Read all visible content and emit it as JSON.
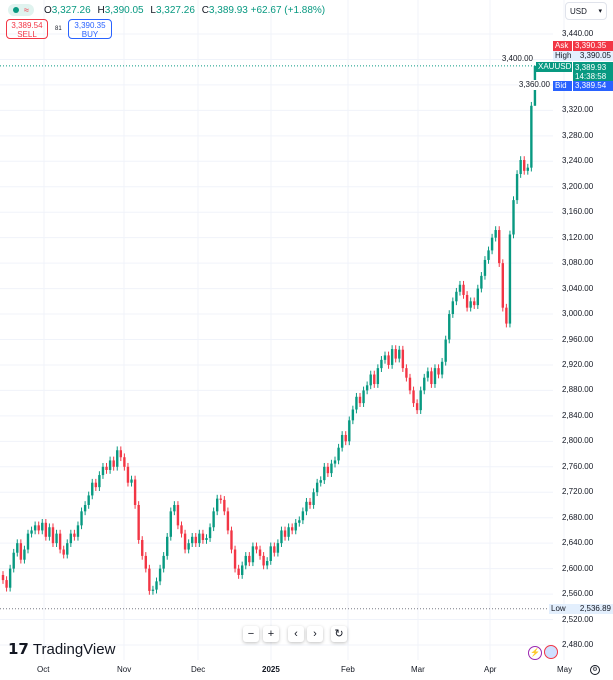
{
  "header": {
    "open_label": "O",
    "open": "3,327.26",
    "high_label": "H",
    "high": "3,390.05",
    "low_label": "L",
    "low": "3,327.26",
    "close_label": "C",
    "close": "3,389.93",
    "change": "+62.67 (+1.88%)"
  },
  "trade": {
    "sell_price": "3,389.54",
    "sell_label": "SELL",
    "spread": "81",
    "buy_price": "3,390.35",
    "buy_label": "BUY"
  },
  "currency": "USD",
  "price_tags": {
    "ask_label": "Ask",
    "ask": "3,390.35",
    "high_label": "High",
    "high": "3,390.05",
    "symbol": "XAUUSD",
    "last": "3,389.93",
    "countdown": "14:38:58",
    "bid_label": "Bid",
    "bid": "3,389.54",
    "low_label": "Low",
    "low": "2,536.89"
  },
  "x_labels": [
    "Oct",
    "Nov",
    "Dec",
    "2025",
    "Feb",
    "Mar",
    "Apr",
    "May"
  ],
  "toolbar": {
    "zoom_out": "−",
    "zoom_in": "+",
    "scroll_left": "‹",
    "scroll_right": "›",
    "reset": "↻"
  },
  "brand": "TradingView",
  "colors": {
    "up": "#089981",
    "down": "#f23645",
    "bid": "#2962ff",
    "grid": "#f0f3fa"
  },
  "chart_data": {
    "type": "candlestick",
    "symbol": "XAUUSD",
    "ylim": [
      2480,
      3440
    ],
    "y_ticks": [
      3440,
      3400,
      3360,
      3320,
      3280,
      3240,
      3200,
      3160,
      3120,
      3080,
      3040,
      3000,
      2960,
      2920,
      2880,
      2840,
      2800,
      2760,
      2720,
      2680,
      2640,
      2600,
      2560,
      2520,
      2480
    ],
    "first_open": 2590,
    "closes": [
      2582,
      2570,
      2600,
      2625,
      2640,
      2614,
      2630,
      2655,
      2660,
      2668,
      2660,
      2672,
      2650,
      2665,
      2640,
      2655,
      2630,
      2622,
      2640,
      2655,
      2650,
      2668,
      2690,
      2700,
      2715,
      2735,
      2728,
      2747,
      2760,
      2755,
      2770,
      2760,
      2786,
      2775,
      2760,
      2735,
      2740,
      2700,
      2645,
      2620,
      2600,
      2565,
      2567,
      2580,
      2600,
      2620,
      2650,
      2690,
      2700,
      2668,
      2655,
      2630,
      2640,
      2650,
      2640,
      2655,
      2645,
      2648,
      2665,
      2690,
      2710,
      2708,
      2690,
      2660,
      2630,
      2600,
      2590,
      2605,
      2620,
      2610,
      2635,
      2630,
      2620,
      2605,
      2612,
      2635,
      2625,
      2640,
      2660,
      2650,
      2665,
      2660,
      2672,
      2676,
      2690,
      2705,
      2700,
      2720,
      2735,
      2739,
      2760,
      2750,
      2765,
      2770,
      2790,
      2810,
      2800,
      2833,
      2850,
      2870,
      2860,
      2880,
      2888,
      2905,
      2890,
      2915,
      2928,
      2935,
      2920,
      2945,
      2930,
      2944,
      2915,
      2900,
      2880,
      2860,
      2849,
      2880,
      2900,
      2910,
      2890,
      2915,
      2905,
      2925,
      2960,
      3000,
      3020,
      3035,
      3046,
      3030,
      3010,
      3020,
      3014,
      3040,
      3060,
      3085,
      3100,
      3120,
      3132,
      3080,
      3010,
      2985,
      3125,
      3179,
      3220,
      3242,
      3225,
      3230,
      3327.26,
      3389.93
    ],
    "last_candle": {
      "open": 3327.26,
      "high": 3390.05,
      "low": 3327.26,
      "close": 3389.93
    }
  }
}
